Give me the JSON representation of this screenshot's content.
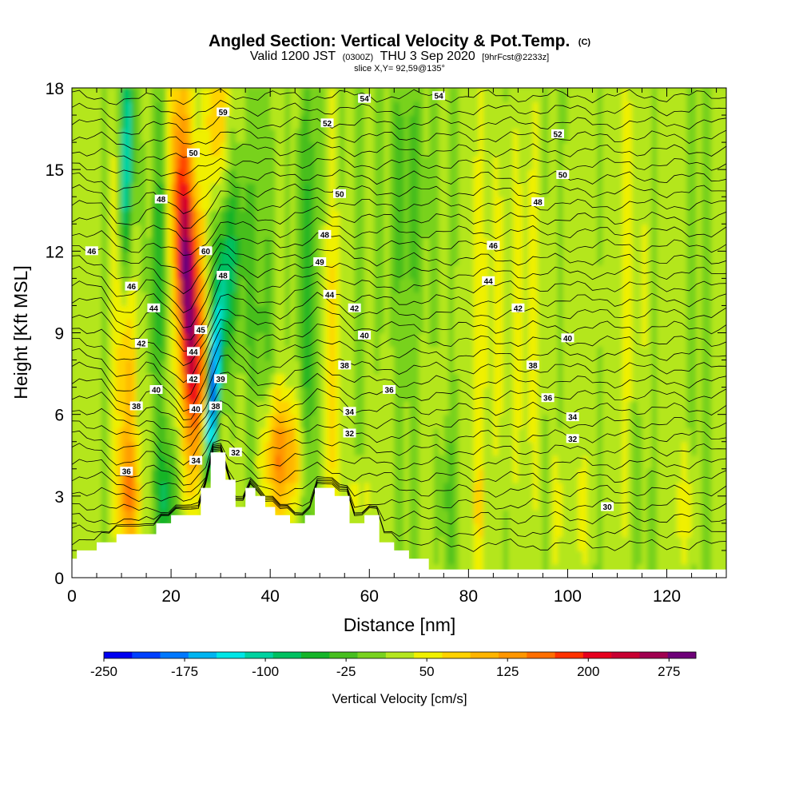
{
  "title": {
    "main": "Angled Section: Vertical Velocity & Pot.Temp.",
    "main_mark": "(C)",
    "valid_a": "Valid 1200 JST",
    "valid_b": "(0300Z)",
    "valid_c": "THU 3 Sep 2020",
    "valid_d": "[9hrFcst@2233z]",
    "slice": "slice X,Y= 92,59@135°"
  },
  "chart_data": {
    "type": "heatmap",
    "title": "Angled Section: Vertical Velocity & Pot.Temp.",
    "xlabel": "Distance [nm]",
    "ylabel": "Height [Kft MSL]",
    "xlim": [
      0,
      132
    ],
    "ylim": [
      0,
      18
    ],
    "x_ticks": [
      0,
      20,
      40,
      60,
      80,
      100,
      120
    ],
    "x_tick_labels": [
      "0",
      "20",
      "40",
      "60",
      "80",
      "100",
      "120"
    ],
    "y_ticks": [
      0,
      3,
      6,
      9,
      12,
      15,
      18
    ],
    "y_tick_labels": [
      "0",
      "3",
      "6",
      "9",
      "12",
      "15",
      "18"
    ],
    "colorbar": {
      "label": "Vertical Velocity [cm/s]",
      "min": -250,
      "max": 300,
      "tick_values": [
        -250,
        -175,
        -100,
        -25,
        50,
        125,
        200,
        275
      ],
      "tick_labels": [
        "-250",
        "-175",
        "-100",
        "-25",
        "50",
        "125",
        "200",
        "275"
      ],
      "colors": [
        "#0000f0",
        "#0040ff",
        "#0078ff",
        "#00b4f0",
        "#00e6e6",
        "#00d2a0",
        "#00c060",
        "#14b428",
        "#46be1e",
        "#78d21e",
        "#b4e61e",
        "#f0f000",
        "#ffd200",
        "#ffb400",
        "#ff9600",
        "#ff6e00",
        "#ff3200",
        "#e6001e",
        "#c80032",
        "#a00050",
        "#6e0078"
      ]
    },
    "updrafts": [
      {
        "x": 10.5,
        "z": 8,
        "peak_cms": 120,
        "description": "left tilted plume"
      },
      {
        "x": 24,
        "z": 10,
        "peak_cms": 260,
        "description": "main updraft core"
      },
      {
        "x": 29,
        "z": 17,
        "peak_cms": 100,
        "description": "upper orange column"
      },
      {
        "x": 42,
        "z": 5,
        "peak_cms": 130,
        "description": "low-level orange blob"
      },
      {
        "x": 52,
        "z": 8,
        "peak_cms": 60,
        "description": "yellow column"
      }
    ],
    "downdrafts": [
      {
        "x": 28,
        "z": 6,
        "peak_cms": -250,
        "description": "main downdraft core"
      },
      {
        "x": 11,
        "z": 15,
        "peak_cms": -150,
        "description": "upper-left cyan streak"
      },
      {
        "x": 18,
        "z": 14,
        "peak_cms": -60,
        "description": "green column"
      },
      {
        "x": 48,
        "z": 10,
        "peak_cms": -60,
        "description": "green column"
      }
    ],
    "terrain_profile": {
      "x": [
        0,
        1,
        5,
        9,
        13,
        17,
        20,
        23,
        26,
        28,
        29,
        31,
        33,
        35,
        37,
        39,
        41,
        44,
        47,
        49,
        51,
        53,
        56,
        59,
        62,
        65,
        68,
        72,
        132
      ],
      "z_kft": [
        0.7,
        1.0,
        1.3,
        1.6,
        1.6,
        2.0,
        2.3,
        2.3,
        3.3,
        4.6,
        4.6,
        3.6,
        2.6,
        3.3,
        3.0,
        2.6,
        2.3,
        2.0,
        2.3,
        3.3,
        3.3,
        3.0,
        2.0,
        2.3,
        1.3,
        1.0,
        0.7,
        0.3,
        0.3
      ]
    },
    "isentropes": [
      {
        "theta": "30",
        "label_x": 108,
        "label_z": 2.6
      },
      {
        "theta": "32",
        "label_x": 56,
        "label_z": 5.3
      },
      {
        "theta": "32",
        "label_x": 33,
        "label_z": 4.6
      },
      {
        "theta": "32",
        "label_x": 101,
        "label_z": 5.1
      },
      {
        "theta": "34",
        "label_x": 25,
        "label_z": 4.3
      },
      {
        "theta": "34",
        "label_x": 56,
        "label_z": 6.1
      },
      {
        "theta": "34",
        "label_x": 101,
        "label_z": 5.9
      },
      {
        "theta": "36",
        "label_x": 11,
        "label_z": 3.9
      },
      {
        "theta": "36",
        "label_x": 64,
        "label_z": 6.9
      },
      {
        "theta": "36",
        "label_x": 96,
        "label_z": 6.6
      },
      {
        "theta": "38",
        "label_x": 13,
        "label_z": 6.3
      },
      {
        "theta": "38",
        "label_x": 29,
        "label_z": 6.3
      },
      {
        "theta": "38",
        "label_x": 55,
        "label_z": 7.8
      },
      {
        "theta": "38",
        "label_x": 93,
        "label_z": 7.8
      },
      {
        "theta": "39",
        "label_x": 30,
        "label_z": 7.3
      },
      {
        "theta": "40",
        "label_x": 17,
        "label_z": 6.9
      },
      {
        "theta": "40",
        "label_x": 25,
        "label_z": 6.2
      },
      {
        "theta": "40",
        "label_x": 59,
        "label_z": 8.9
      },
      {
        "theta": "40",
        "label_x": 100,
        "label_z": 8.8
      },
      {
        "theta": "42",
        "label_x": 14,
        "label_z": 8.6
      },
      {
        "theta": "42",
        "label_x": 24.5,
        "label_z": 7.3
      },
      {
        "theta": "42",
        "label_x": 57,
        "label_z": 9.9
      },
      {
        "theta": "42",
        "label_x": 90,
        "label_z": 9.9
      },
      {
        "theta": "44",
        "label_x": 16.5,
        "label_z": 9.9
      },
      {
        "theta": "44",
        "label_x": 24.5,
        "label_z": 8.3
      },
      {
        "theta": "44",
        "label_x": 52,
        "label_z": 10.4
      },
      {
        "theta": "44",
        "label_x": 84,
        "label_z": 10.9
      },
      {
        "theta": "45",
        "label_x": 26,
        "label_z": 9.1
      },
      {
        "theta": "46",
        "label_x": 4,
        "label_z": 12
      },
      {
        "theta": "46",
        "label_x": 12,
        "label_z": 10.7
      },
      {
        "theta": "46",
        "label_x": 85,
        "label_z": 12.2
      },
      {
        "theta": "48",
        "label_x": 18,
        "label_z": 13.9
      },
      {
        "theta": "48",
        "label_x": 30.5,
        "label_z": 11.1
      },
      {
        "theta": "48",
        "label_x": 51,
        "label_z": 12.6
      },
      {
        "theta": "48",
        "label_x": 94,
        "label_z": 13.8
      },
      {
        "theta": "49",
        "label_x": 50,
        "label_z": 11.6
      },
      {
        "theta": "50",
        "label_x": 24.5,
        "label_z": 15.6
      },
      {
        "theta": "50",
        "label_x": 54,
        "label_z": 14.1
      },
      {
        "theta": "50",
        "label_x": 99,
        "label_z": 14.8
      },
      {
        "theta": "52",
        "label_x": 98,
        "label_z": 16.3
      },
      {
        "theta": "52",
        "label_x": 51.5,
        "label_z": 16.7
      },
      {
        "theta": "54",
        "label_x": 59,
        "label_z": 17.6
      },
      {
        "theta": "54",
        "label_x": 74,
        "label_z": 17.7
      },
      {
        "theta": "59",
        "label_x": 30.5,
        "label_z": 17.1
      },
      {
        "theta": "60",
        "label_x": 27,
        "label_z": 12
      }
    ]
  }
}
